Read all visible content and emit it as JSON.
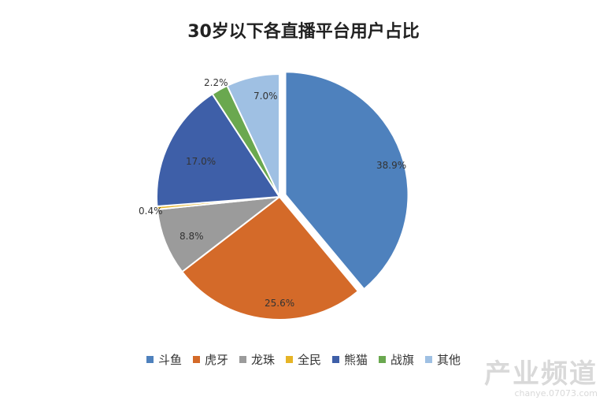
{
  "chart_data": {
    "type": "pie",
    "title": "30岁以下各直播平台用户占比",
    "start_angle_deg": 0,
    "direction": "clockwise",
    "exploded_index": 0,
    "slices": [
      {
        "name": "斗鱼",
        "value": 38.9,
        "label": "38.9%",
        "color": "#4E81BD"
      },
      {
        "name": "虎牙",
        "value": 25.6,
        "label": "25.6%",
        "color": "#D46A29"
      },
      {
        "name": "龙珠",
        "value": 8.8,
        "label": "8.8%",
        "color": "#9B9B9B"
      },
      {
        "name": "全民",
        "value": 0.4,
        "label": "0.4%",
        "color": "#E6B426"
      },
      {
        "name": "熊猫",
        "value": 17.0,
        "label": "17.0%",
        "color": "#3E5FA8"
      },
      {
        "name": "战旗",
        "value": 2.2,
        "label": "2.2%",
        "color": "#6AA84F"
      },
      {
        "name": "其他",
        "value": 7.0,
        "label": "7.0%",
        "color": "#9FC0E3"
      }
    ],
    "legend_position": "bottom"
  },
  "watermark": {
    "main": "产业频道",
    "sub": "chanye.07073.com"
  }
}
